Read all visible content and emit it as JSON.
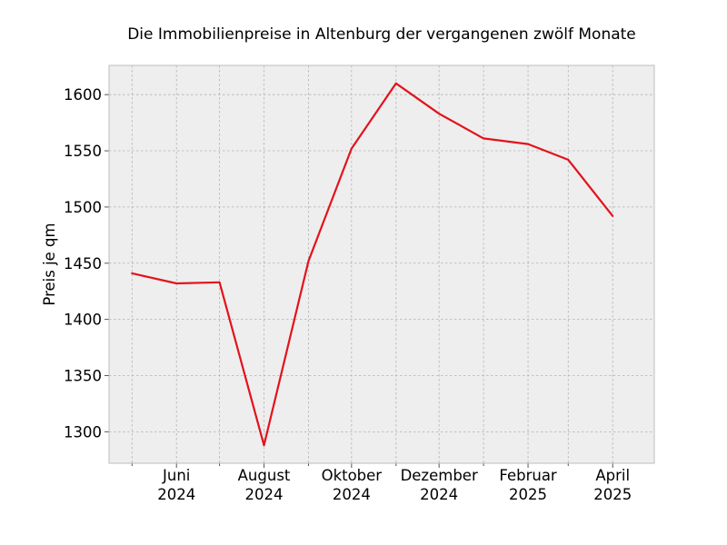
{
  "chart_data": {
    "type": "line",
    "title": "Die Immobilienpreise in Altenburg der vergangenen zwölf Monate",
    "xlabel": "",
    "ylabel": "Preis je qm",
    "x": [
      "2024-05",
      "2024-06",
      "2024-07",
      "2024-08",
      "2024-09",
      "2024-10",
      "2024-11",
      "2024-12",
      "2025-01",
      "2025-02",
      "2025-03",
      "2025-04"
    ],
    "series": [
      {
        "values": [
          1441,
          1432,
          1433,
          1288,
          1452,
          1552,
          1610,
          1583,
          1561,
          1556,
          1542,
          1492
        ],
        "color": "#e3121c"
      }
    ],
    "xlim": [
      "2024-04-15",
      "2025-04-30"
    ],
    "ylim": [
      1272,
      1626
    ],
    "yticks": [
      1300,
      1350,
      1400,
      1450,
      1500,
      1550,
      1600
    ],
    "xticks": [
      {
        "x": "2024-06",
        "line1": "Juni",
        "line2": "2024"
      },
      {
        "x": "2024-08",
        "line1": "August",
        "line2": "2024"
      },
      {
        "x": "2024-10",
        "line1": "Oktober",
        "line2": "2024"
      },
      {
        "x": "2024-12",
        "line1": "Dezember",
        "line2": "2024"
      },
      {
        "x": "2025-02",
        "line1": "Februar",
        "line2": "2025"
      },
      {
        "x": "2025-04",
        "line1": "April",
        "line2": "2025"
      }
    ],
    "minor_xticks": [
      "2024-05",
      "2024-07",
      "2024-09",
      "2024-11",
      "2025-01",
      "2025-03"
    ],
    "grid": true,
    "background": "#eeeeee"
  }
}
